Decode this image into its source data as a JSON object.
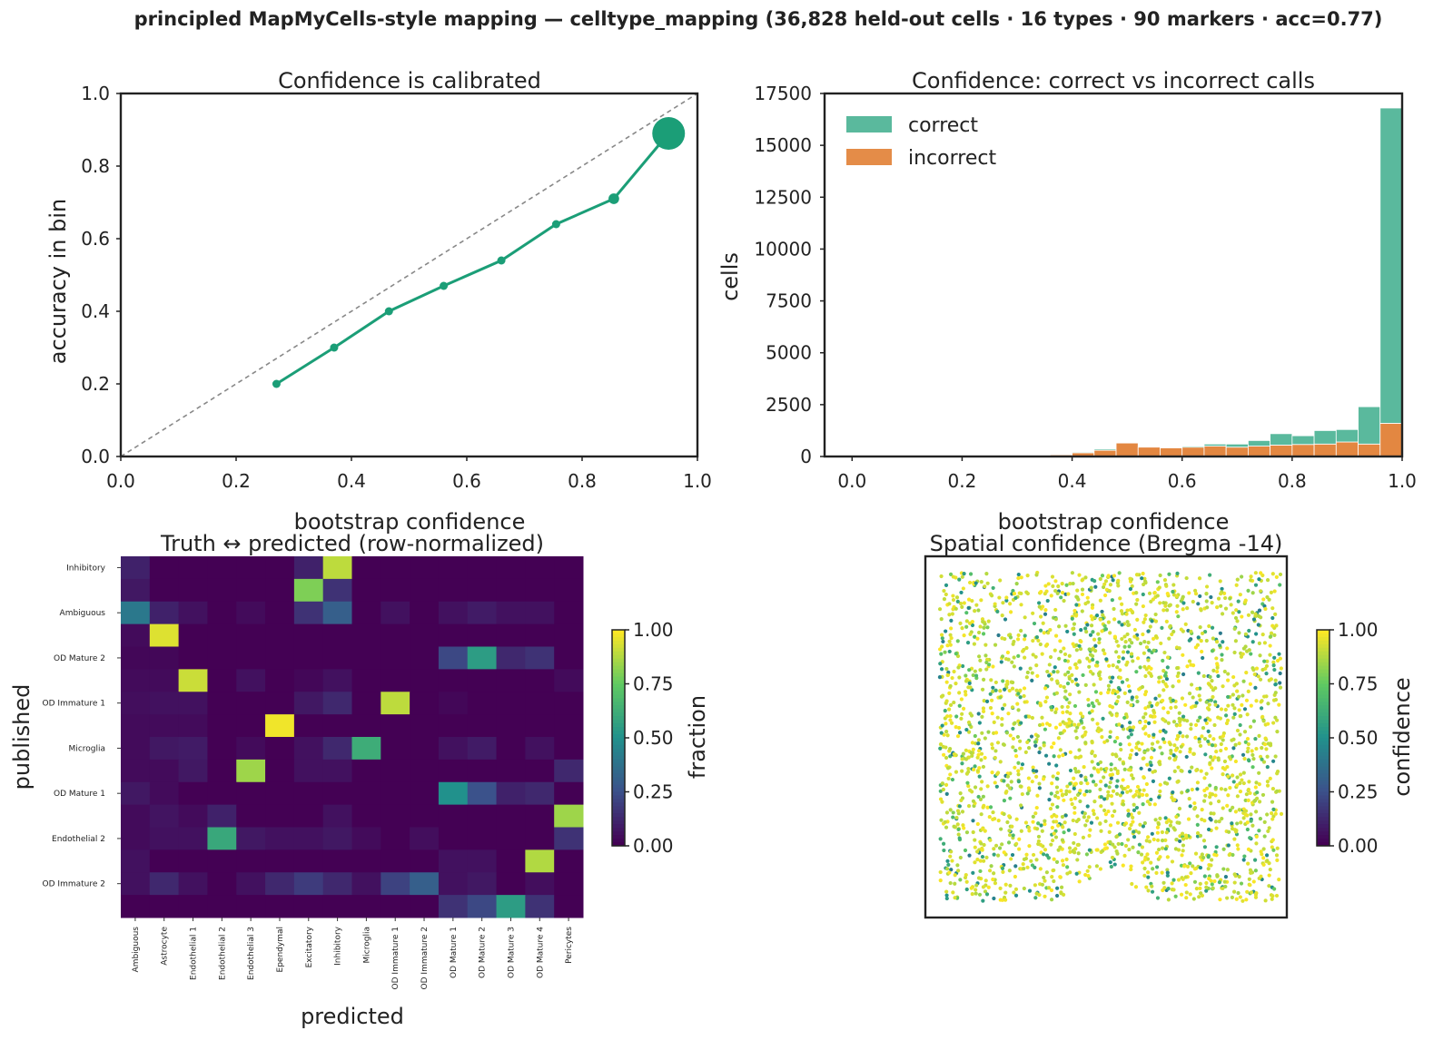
{
  "suptitle": "principled MapMyCells-style mapping — celltype_mapping (36,828 held-out cells · 16 types · 90 markers · acc=0.77)",
  "chart_data": [
    {
      "type": "line",
      "title": "Confidence is calibrated",
      "xlabel": "bootstrap confidence",
      "ylabel": "accuracy in bin",
      "xlim": [
        0,
        1
      ],
      "ylim": [
        0,
        1
      ],
      "xticks": [
        0.0,
        0.2,
        0.4,
        0.6,
        0.8,
        1.0
      ],
      "yticks": [
        0.0,
        0.2,
        0.4,
        0.6,
        0.8,
        1.0
      ],
      "diagonal_reference": true,
      "color": "#1b9e77",
      "x": [
        0.27,
        0.37,
        0.465,
        0.56,
        0.66,
        0.755,
        0.855,
        0.95
      ],
      "y": [
        0.2,
        0.3,
        0.4,
        0.47,
        0.54,
        0.64,
        0.71,
        0.89
      ],
      "relative_bin_size": [
        1,
        1,
        1,
        1,
        1,
        1,
        1.3,
        4
      ]
    },
    {
      "type": "bar",
      "stacked": true,
      "title": "Confidence: correct vs incorrect calls",
      "xlabel": "bootstrap confidence",
      "ylabel": "cells",
      "xlim": [
        -0.05,
        1.0
      ],
      "ylim": [
        0,
        17500
      ],
      "xticks": [
        0.0,
        0.2,
        0.4,
        0.6,
        0.8,
        1.0
      ],
      "yticks": [
        0,
        2500,
        5000,
        7500,
        10000,
        12500,
        15000,
        17500
      ],
      "legend": "top-left",
      "bin_edges": [
        0.36,
        0.4,
        0.44,
        0.48,
        0.52,
        0.56,
        0.6,
        0.64,
        0.68,
        0.72,
        0.76,
        0.8,
        0.84,
        0.88,
        0.92,
        0.96,
        1.0
      ],
      "series": [
        {
          "name": "incorrect",
          "color": "#d95f02",
          "values": [
            80,
            180,
            300,
            650,
            450,
            420,
            450,
            500,
            450,
            500,
            550,
            580,
            600,
            700,
            600,
            1600
          ]
        },
        {
          "name": "correct",
          "color": "#1b9e77",
          "values": [
            20,
            40,
            60,
            0,
            0,
            30,
            50,
            100,
            150,
            270,
            550,
            420,
            650,
            600,
            1800,
            15200
          ]
        }
      ]
    },
    {
      "type": "heatmap",
      "title": "Truth ↔ predicted (row-normalized)",
      "xlabel": "predicted",
      "ylabel": "published",
      "colorbar_label": "fraction",
      "colorbar_ticks": [
        "0.00",
        "0.25",
        "0.50",
        "0.75",
        "1.00"
      ],
      "columns": [
        "Ambiguous",
        "Astrocyte",
        "Endothelial 1",
        "Endothelial 2",
        "Endothelial 3",
        "Ependymal",
        "Excitatory",
        "Inhibitory",
        "Microglia",
        "OD Immature 1",
        "OD Immature 2",
        "OD Mature 1",
        "OD Mature 2",
        "OD Mature 3",
        "OD Mature 4",
        "Pericytes"
      ],
      "row_labels": [
        "Inhibitory",
        "Ambiguous",
        "OD Mature 2",
        "OD Immature 1",
        "Microglia",
        "OD Mature 1",
        "Endothelial 2",
        "OD Immature 2"
      ],
      "rows": [
        [
          0.1,
          0,
          0,
          0,
          0,
          0,
          0.1,
          0.9,
          0,
          0,
          0,
          0,
          0,
          0,
          0,
          0
        ],
        [
          0.07,
          0,
          0,
          0,
          0,
          0,
          0.8,
          0.15,
          0,
          0,
          0,
          0,
          0,
          0,
          0,
          0
        ],
        [
          0.4,
          0.1,
          0.05,
          0,
          0.03,
          0,
          0.15,
          0.3,
          0,
          0.05,
          0,
          0.05,
          0.08,
          0.05,
          0.05,
          0
        ],
        [
          0.03,
          0.95,
          0,
          0,
          0,
          0,
          0,
          0,
          0,
          0,
          0,
          0,
          0,
          0,
          0,
          0
        ],
        [
          0.02,
          0.02,
          0,
          0,
          0,
          0,
          0,
          0,
          0,
          0,
          0,
          0.22,
          0.55,
          0.12,
          0.15,
          0
        ],
        [
          0.03,
          0.03,
          0.92,
          0,
          0.05,
          0,
          0.02,
          0.05,
          0,
          0,
          0,
          0,
          0,
          0,
          0,
          0.03
        ],
        [
          0.04,
          0.05,
          0.05,
          0,
          0,
          0,
          0.07,
          0.12,
          0,
          0.9,
          0,
          0.02,
          0,
          0,
          0,
          0
        ],
        [
          0.03,
          0.03,
          0.03,
          0,
          0,
          0.98,
          0,
          0,
          0,
          0,
          0,
          0,
          0,
          0,
          0,
          0
        ],
        [
          0.03,
          0.07,
          0.08,
          0,
          0.03,
          0,
          0.05,
          0.12,
          0.62,
          0,
          0,
          0.05,
          0.08,
          0,
          0.05,
          0
        ],
        [
          0.03,
          0.03,
          0.07,
          0,
          0.85,
          0,
          0.05,
          0.05,
          0,
          0,
          0,
          0,
          0,
          0,
          0,
          0.12
        ],
        [
          0.07,
          0.03,
          0,
          0,
          0,
          0,
          0,
          0,
          0,
          0,
          0,
          0.5,
          0.25,
          0.1,
          0.12,
          0
        ],
        [
          0.03,
          0.06,
          0.03,
          0.1,
          0,
          0,
          0,
          0.05,
          0,
          0,
          0,
          0,
          0,
          0,
          0,
          0.85
        ],
        [
          0.03,
          0.05,
          0.05,
          0.6,
          0.07,
          0.05,
          0.05,
          0.07,
          0.03,
          0,
          0.04,
          0,
          0,
          0,
          0,
          0.15
        ],
        [
          0.05,
          0,
          0,
          0,
          0,
          0,
          0,
          0,
          0,
          0,
          0,
          0.05,
          0.05,
          0,
          0.88,
          0
        ],
        [
          0.05,
          0.12,
          0.05,
          0,
          0.05,
          0.12,
          0.18,
          0.12,
          0.05,
          0.2,
          0.3,
          0.05,
          0.07,
          0,
          0.04,
          0
        ],
        [
          0,
          0,
          0,
          0,
          0,
          0,
          0,
          0,
          0,
          0,
          0,
          0.15,
          0.22,
          0.55,
          0.15,
          0
        ]
      ]
    },
    {
      "type": "scatter",
      "title": "Spatial confidence (Bregma -14)",
      "colorbar_label": "confidence",
      "colorbar_ticks": [
        "0.00",
        "0.25",
        "0.50",
        "0.75",
        "1.00"
      ],
      "colormap": "viridis",
      "n_points": 2500,
      "confidence_mix": {
        "high_fraction": 0.72,
        "high_range": [
          0.88,
          1.0
        ],
        "low_range": [
          0.4,
          0.88
        ]
      }
    }
  ]
}
